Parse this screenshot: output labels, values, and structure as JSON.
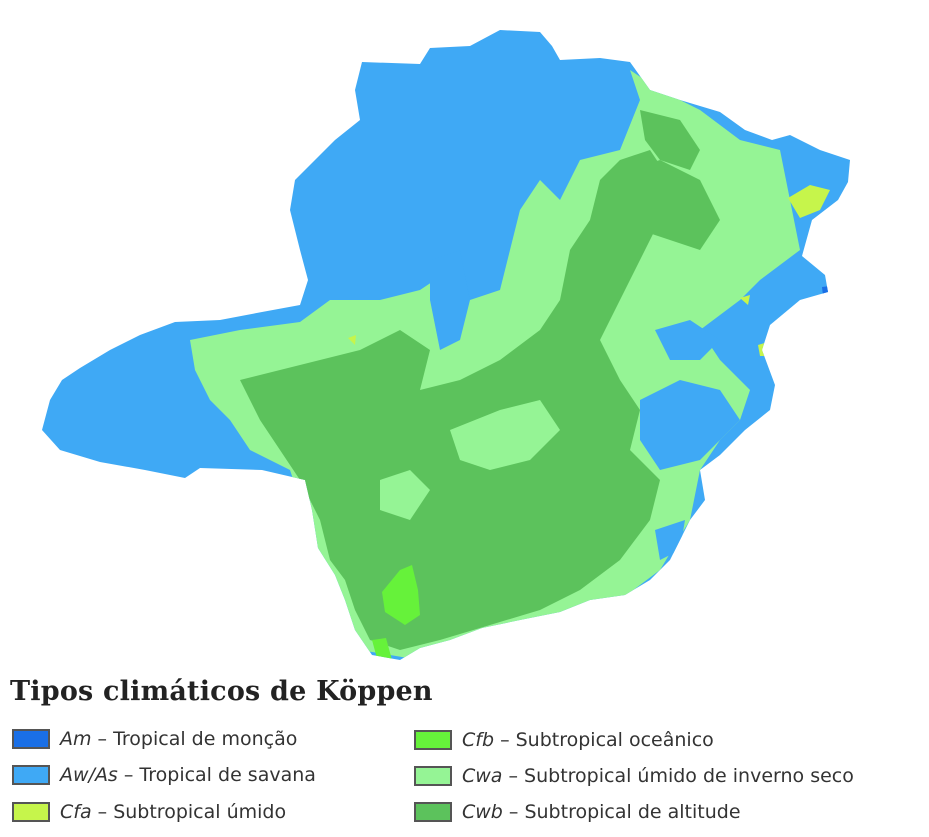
{
  "legend": {
    "title": "Tipos climáticos de Köppen",
    "items": [
      {
        "code": "Am",
        "label": " – Tropical de monção",
        "color": "#1a6fe6"
      },
      {
        "code": "Aw/As",
        "label": " – Tropical de savana",
        "color": "#3fa9f5"
      },
      {
        "code": "Cfa",
        "label": " – Subtropical úmido",
        "color": "#c6f54b"
      },
      {
        "code": "Cfb",
        "label": " – Subtropical oceânico",
        "color": "#66f23a"
      },
      {
        "code": "Cwa",
        "label": " – Subtropical úmido de inverno seco",
        "color": "#95f495"
      },
      {
        "code": "Cwb",
        "label": " – Subtropical de altitude",
        "color": "#5cc25c"
      }
    ]
  }
}
